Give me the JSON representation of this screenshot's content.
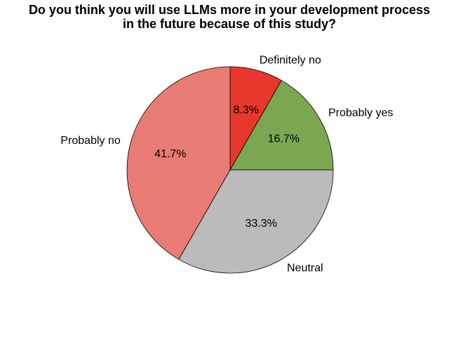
{
  "chart_data": {
    "type": "pie",
    "title": "Do you think you will use LLMs more in your development process in the future because of this study?",
    "title_lines": [
      "Do you think you will use LLMs more in your development process",
      "in the future because of this study?"
    ],
    "start_angle_deg": 90,
    "direction": "clockwise",
    "slices": [
      {
        "label": "Definitely no",
        "value": 8.3,
        "pct_label": "8.3%",
        "color": "#e8382c"
      },
      {
        "label": "Probably yes",
        "value": 16.7,
        "pct_label": "16.7%",
        "color": "#7ba752"
      },
      {
        "label": "Neutral",
        "value": 33.3,
        "pct_label": "33.3%",
        "color": "#bbbbbb"
      },
      {
        "label": "Probably no",
        "value": 41.7,
        "pct_label": "41.7%",
        "color": "#e87b73"
      }
    ],
    "edge_color": "#000000"
  }
}
